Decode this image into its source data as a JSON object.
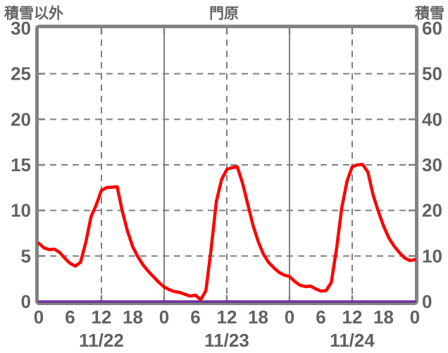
{
  "header": {
    "left_axis_title": "積雪以外",
    "title": "門原",
    "right_axis_title": "積雪"
  },
  "colors": {
    "frame": "#828282",
    "grid": "#7f7f7f",
    "text": "#616161",
    "series_other_than_snow": "#ff0000",
    "series_snow_depth": "#7030a0"
  },
  "chart_data": {
    "type": "line",
    "title": "門原",
    "x_unit": "hour",
    "x_range": [
      0,
      72
    ],
    "left_axis": {
      "title": "積雪以外",
      "range": [
        0,
        30
      ],
      "ticks": [
        30,
        25,
        20,
        15,
        10,
        5,
        0
      ]
    },
    "right_axis": {
      "title": "積雪",
      "range": [
        0,
        60
      ],
      "ticks": [
        60,
        50,
        40,
        30,
        20,
        10,
        0
      ]
    },
    "x_ticks": {
      "hours": [
        0,
        6,
        12,
        18,
        24,
        30,
        36,
        42,
        48,
        54,
        60,
        66,
        72
      ],
      "labels": [
        "0",
        "6",
        "12",
        "18",
        "0",
        "6",
        "12",
        "18",
        "0",
        "6",
        "12",
        "18",
        "0"
      ]
    },
    "date_labels": [
      {
        "label": "11/22",
        "hour": 12
      },
      {
        "label": "11/23",
        "hour": 36
      },
      {
        "label": "11/24",
        "hour": 60
      }
    ],
    "grid": {
      "h_dashed_values": [
        5,
        10,
        15,
        20,
        25
      ],
      "v_dashed_hours": [
        12,
        36,
        60
      ],
      "v_solid_hours": [
        24,
        48
      ]
    },
    "series": [
      {
        "name": "積雪以外",
        "axis": "left",
        "color": "#ff0000",
        "width": 4.5,
        "values": [
          6.4,
          5.9,
          5.7,
          5.75,
          5.4,
          4.75,
          4.2,
          3.9,
          4.3,
          6.5,
          9.3,
          10.6,
          12.2,
          12.5,
          12.55,
          12.6,
          9.9,
          7.7,
          6.0,
          4.9,
          4.0,
          3.3,
          2.7,
          2.1,
          1.6,
          1.3,
          1.1,
          1.0,
          0.8,
          0.6,
          0.7,
          0.2,
          1.2,
          5.8,
          11.0,
          13.4,
          14.5,
          14.7,
          14.8,
          13.0,
          10.7,
          8.4,
          6.6,
          5.2,
          4.3,
          3.7,
          3.2,
          2.9,
          2.75,
          2.2,
          1.8,
          1.65,
          1.7,
          1.4,
          1.15,
          1.2,
          2.1,
          5.8,
          10.3,
          13.2,
          14.8,
          15.0,
          15.05,
          14.2,
          11.7,
          9.9,
          8.3,
          7.0,
          6.1,
          5.4,
          4.8,
          4.5,
          4.6
        ]
      },
      {
        "name": "積雪",
        "axis": "right",
        "color": "#7030a0",
        "width": 3.5,
        "values": [
          0,
          0,
          0,
          0,
          0,
          0,
          0,
          0,
          0,
          0,
          0,
          0,
          0,
          0,
          0,
          0,
          0,
          0,
          0,
          0,
          0,
          0,
          0,
          0,
          0,
          0,
          0,
          0,
          0,
          0,
          0,
          0,
          0,
          0,
          0,
          0,
          0,
          0,
          0,
          0,
          0,
          0,
          0,
          0,
          0,
          0,
          0,
          0,
          0,
          0,
          0,
          0,
          0,
          0,
          0,
          0,
          0,
          0,
          0,
          0,
          0,
          0,
          0,
          0,
          0,
          0,
          0,
          0,
          0,
          0,
          0,
          0,
          0
        ]
      }
    ]
  }
}
